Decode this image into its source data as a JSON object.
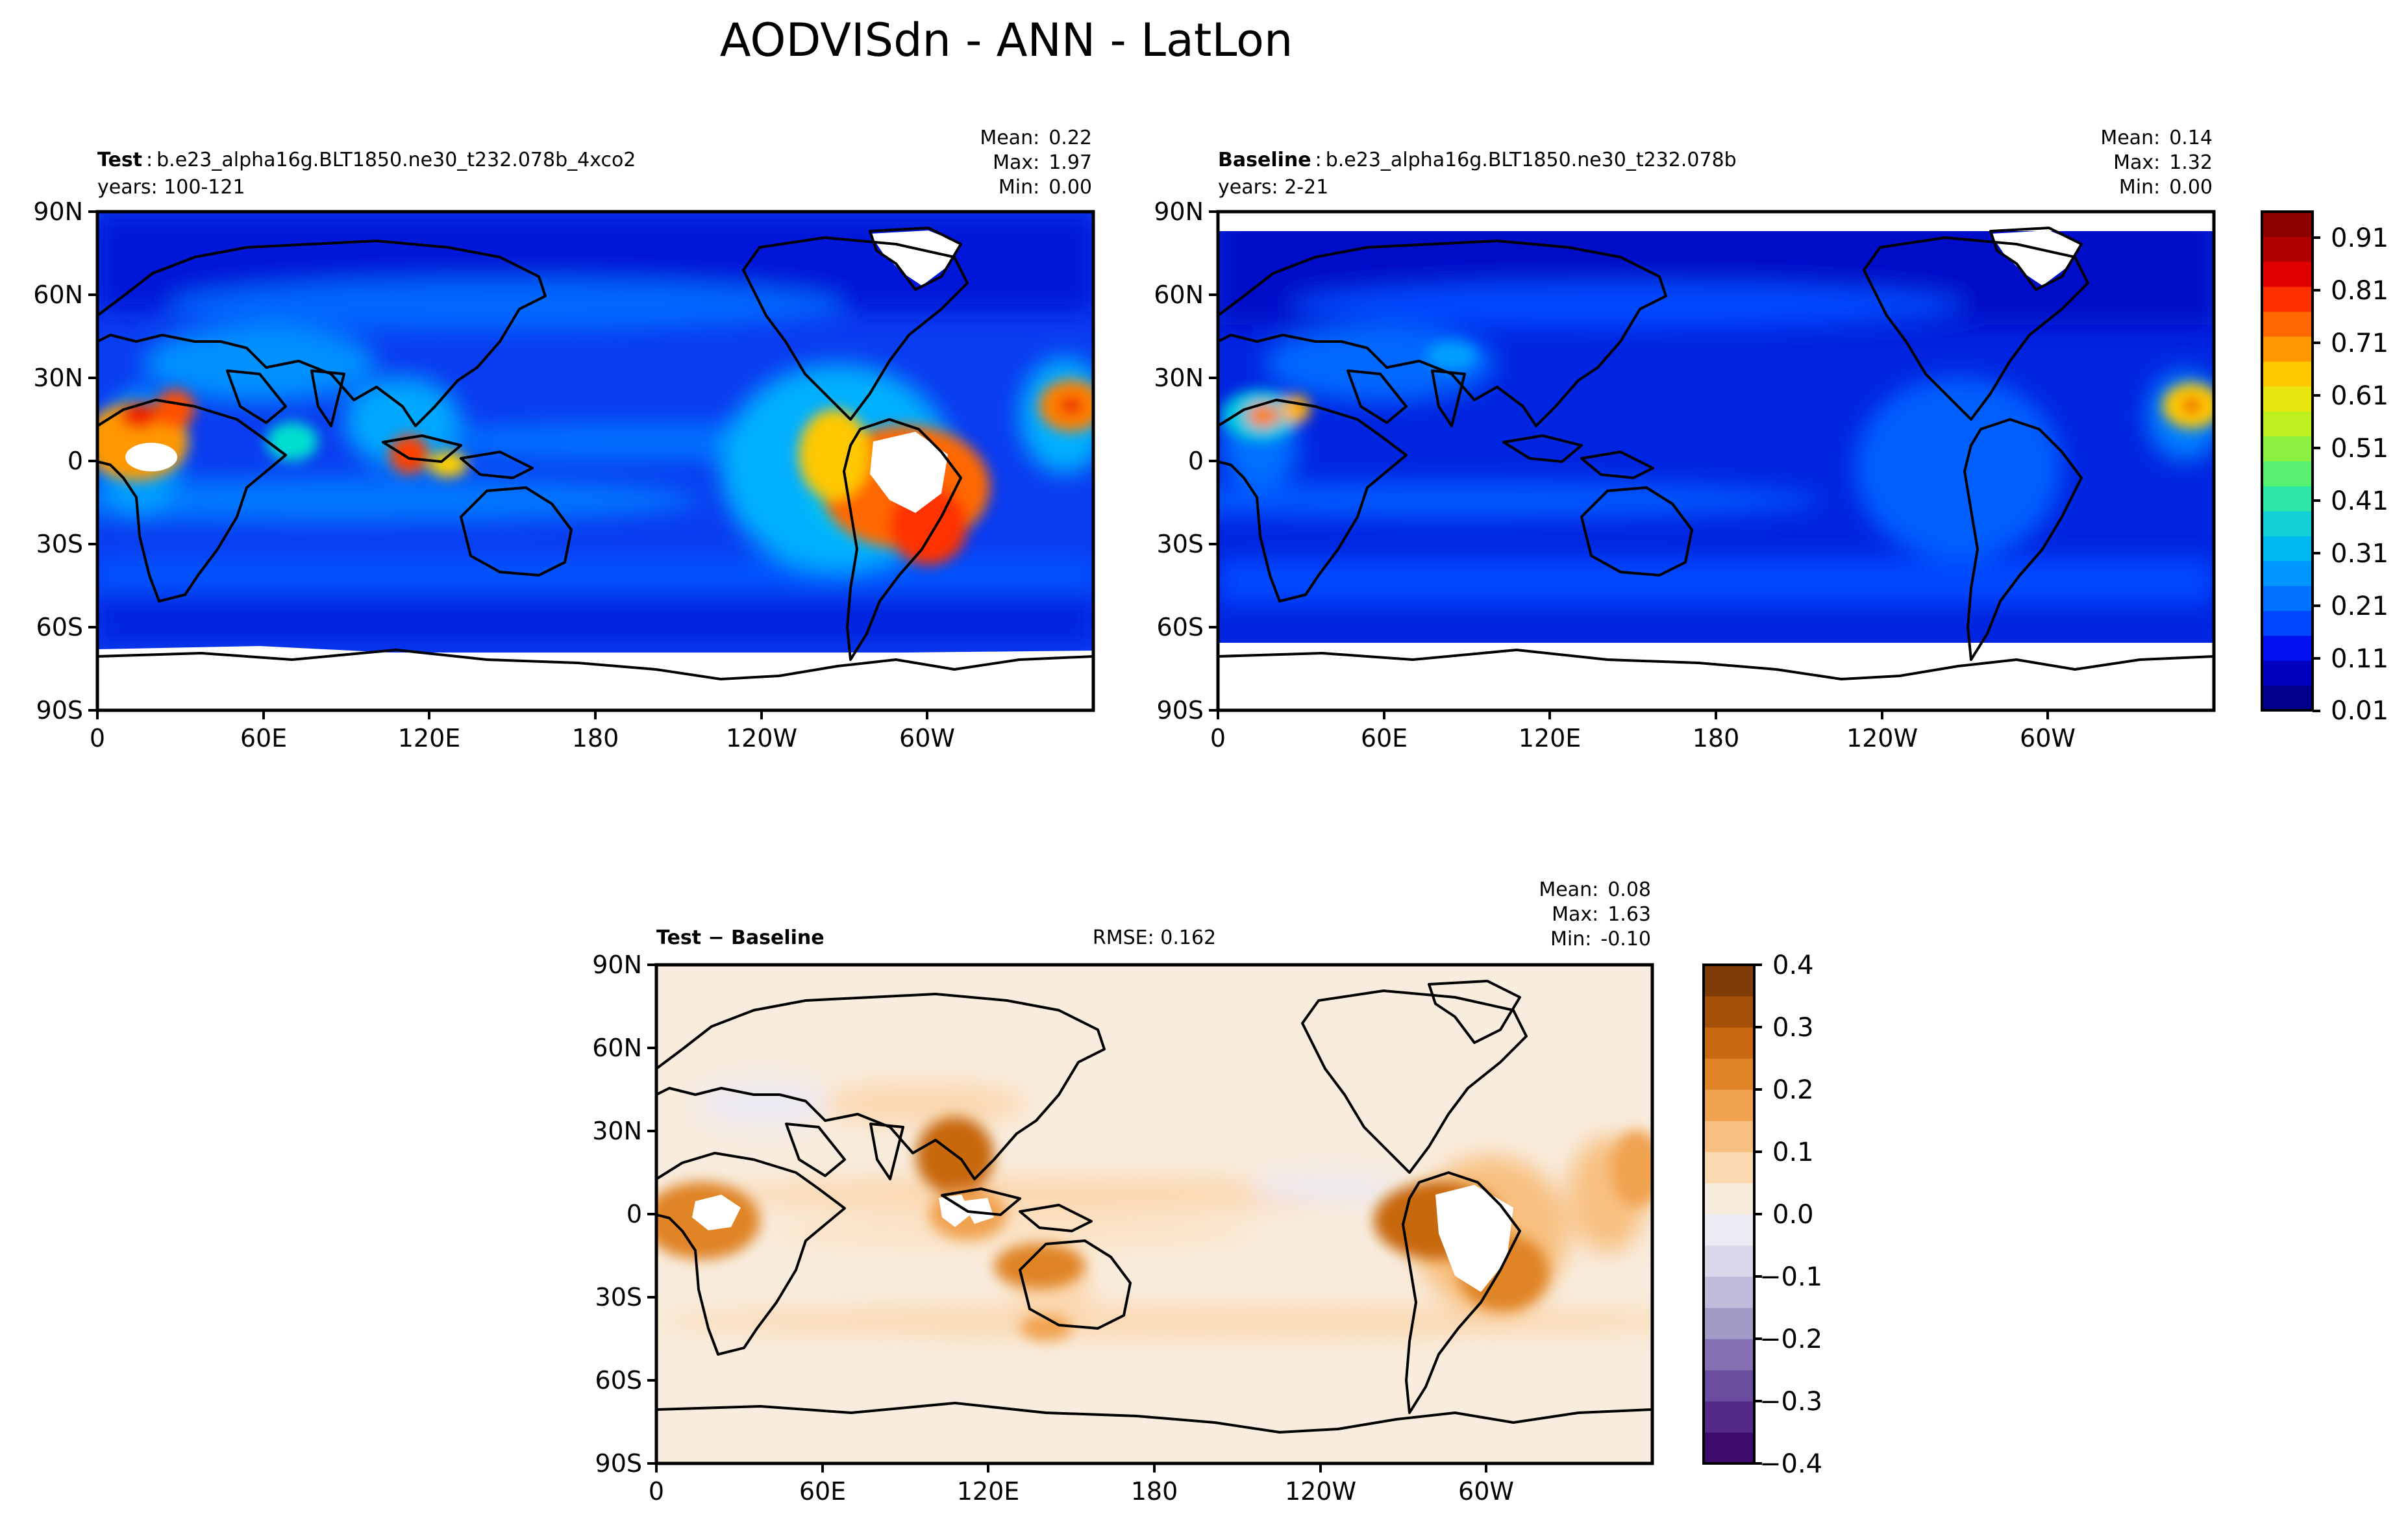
{
  "figure": {
    "title": "AODVISdn - ANN - LatLon"
  },
  "panels": [
    {
      "id": "test",
      "label_bold": "Test",
      "label_sep": ":",
      "case": "b.e23_alpha16g.BLT1850.ne30_t232.078b_4xco2",
      "years": "years: 100-121",
      "stats": [
        {
          "label": "Mean:",
          "value": "0.22"
        },
        {
          "label": "Max:",
          "value": "1.97"
        },
        {
          "label": "Min:",
          "value": "0.00"
        }
      ],
      "rmse": ""
    },
    {
      "id": "baseline",
      "label_bold": "Baseline",
      "label_sep": ":",
      "case": "b.e23_alpha16g.BLT1850.ne30_t232.078b",
      "years": "years: 2-21",
      "stats": [
        {
          "label": "Mean:",
          "value": "0.14"
        },
        {
          "label": "Max:",
          "value": "1.32"
        },
        {
          "label": "Min:",
          "value": "0.00"
        }
      ],
      "rmse": ""
    },
    {
      "id": "diff",
      "label_bold": "Test − Baseline",
      "label_sep": "",
      "case": "",
      "years": "",
      "stats": [
        {
          "label": "Mean:",
          "value": "0.08"
        },
        {
          "label": "Max:",
          "value": "1.63"
        },
        {
          "label": "Min:",
          "value": "-0.10"
        }
      ],
      "rmse": "RMSE: 0.162"
    }
  ],
  "axes": {
    "lat_ticks": [
      "90N",
      "60N",
      "30N",
      "0",
      "30S",
      "60S",
      "90S"
    ],
    "lon_ticks": [
      "0",
      "60E",
      "120E",
      "180",
      "120W",
      "60W"
    ]
  },
  "colorbars": {
    "main": {
      "tick_labels": [
        "0.91",
        "0.81",
        "0.71",
        "0.61",
        "0.51",
        "0.41",
        "0.31",
        "0.21",
        "0.11",
        "0.01"
      ],
      "colors": [
        "#00008c",
        "#0000c0",
        "#0010f0",
        "#0046ff",
        "#0070ff",
        "#0096ff",
        "#00b8f0",
        "#12d0d6",
        "#2ee6a8",
        "#58f070",
        "#8cf040",
        "#bef020",
        "#e8e810",
        "#ffc800",
        "#ff9800",
        "#ff6800",
        "#ff3000",
        "#e00000",
        "#b00000",
        "#8c0000"
      ]
    },
    "diff": {
      "tick_labels": [
        "0.4",
        "0.3",
        "0.2",
        "0.1",
        "0.0",
        "−0.1",
        "−0.2",
        "−0.3",
        "−0.4"
      ],
      "colors": [
        "#3f0a6e",
        "#532a8a",
        "#6a4c9e",
        "#8570b4",
        "#a29bc8",
        "#bfbbdb",
        "#dad9ec",
        "#eceaf3",
        "#f8ecde",
        "#fbd8b0",
        "#f8c080",
        "#f0a250",
        "#e08428",
        "#c8680f",
        "#a45008",
        "#7f3b08"
      ]
    }
  },
  "chart_data": {
    "type": "heatmap",
    "title": "AODVISdn - ANN - LatLon",
    "xlabel": "",
    "ylabel": "",
    "x_ticks": [
      "0",
      "60E",
      "120E",
      "180",
      "120W",
      "60W"
    ],
    "y_ticks": [
      "90N",
      "60N",
      "30N",
      "0",
      "30S",
      "60S",
      "90S"
    ],
    "xlim": [
      0,
      360
    ],
    "ylim": [
      -90,
      90
    ],
    "series": [
      {
        "name": "Test",
        "mean": 0.22,
        "max": 1.97,
        "min": 0.0,
        "colorbar_range": [
          0.01,
          0.91
        ]
      },
      {
        "name": "Baseline",
        "mean": 0.14,
        "max": 1.32,
        "min": 0.0,
        "colorbar_range": [
          0.01,
          0.91
        ]
      },
      {
        "name": "Test − Baseline",
        "mean": 0.08,
        "max": 1.63,
        "min": -0.1,
        "rmse": 0.162,
        "colorbar_range": [
          -0.4,
          0.4
        ]
      }
    ]
  }
}
